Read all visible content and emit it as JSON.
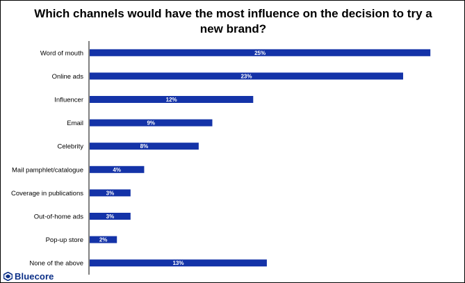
{
  "colors": {
    "bar": "#1433a8",
    "axis": "#000000",
    "label": "#000000",
    "data_label": "#ffffff",
    "brand": "#0b2f87"
  },
  "brand": {
    "name": "Bluecore",
    "icon": "bluecore-logo-icon"
  },
  "chart_data": {
    "type": "bar",
    "orientation": "horizontal",
    "title": "Which channels would have the most influence on the decision to try a new brand?",
    "xlabel": "",
    "ylabel": "",
    "xlim": [
      0,
      25.5
    ],
    "grid": false,
    "legend": "none",
    "categories": [
      "Word of mouth",
      "Online ads",
      "Influencer",
      "Email",
      "Celebrity",
      "Mail pamphlet/catalogue",
      "Coverage in publications",
      "Out-of-home ads",
      "Pop-up store",
      "None of the above"
    ],
    "values": [
      25,
      23,
      12,
      9,
      8,
      4,
      3,
      3,
      2,
      13
    ],
    "value_labels": [
      "25%",
      "23%",
      "12%",
      "9%",
      "8%",
      "4%",
      "3%",
      "3%",
      "2%",
      "13%"
    ]
  }
}
